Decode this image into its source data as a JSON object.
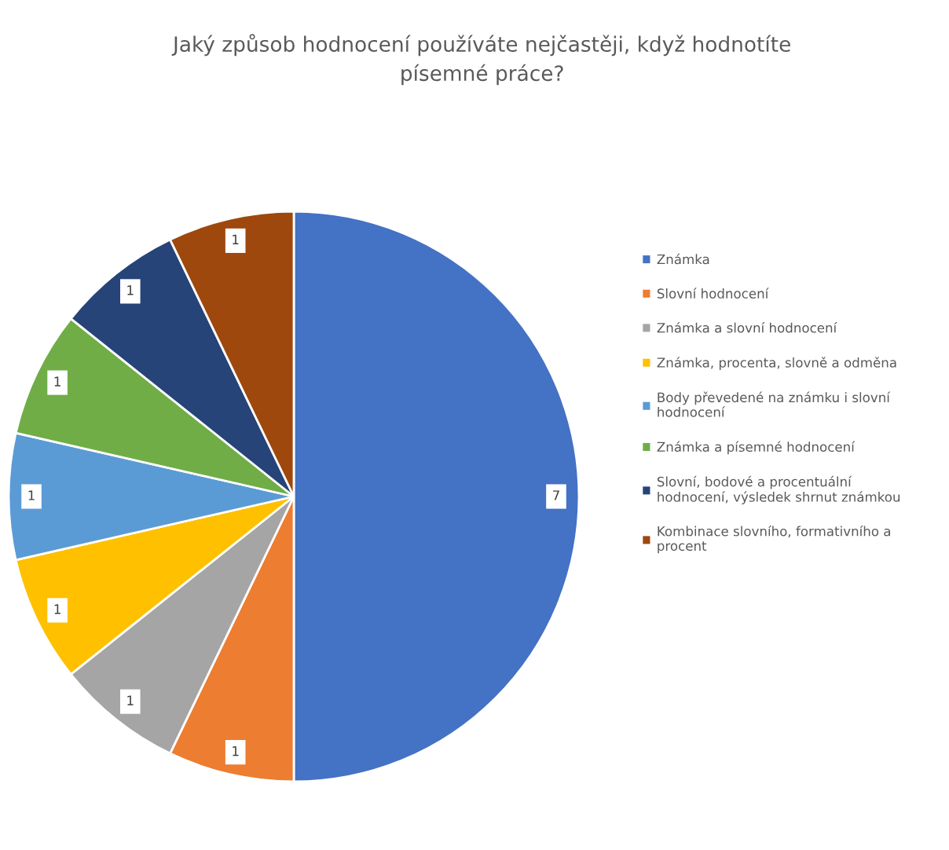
{
  "chart_data": {
    "type": "pie",
    "title": "Jaký způsob hodnocení používáte nejčastěji, když hodnotíte\npísemné práce?",
    "categories": [
      "Známka",
      "Slovní hodnocení",
      "Známka a slovní hodnocení",
      "Známka, procenta, slovně a odměna",
      "Body převedené na známku i slovní\nhodnocení",
      "Známka a písemné hodnocení",
      "Slovní, bodové a procentuální\nhodnocení, výsledek shrnut známkou",
      "Kombinace slovního, formativního a\nprocent"
    ],
    "values": [
      7,
      1,
      1,
      1,
      1,
      1,
      1,
      1
    ],
    "colors": [
      "#4472c4",
      "#ed7d31",
      "#a5a5a5",
      "#ffc000",
      "#5b9bd5",
      "#70ad47",
      "#264478",
      "#9e480e"
    ],
    "data_labels": true,
    "legend": "right"
  }
}
